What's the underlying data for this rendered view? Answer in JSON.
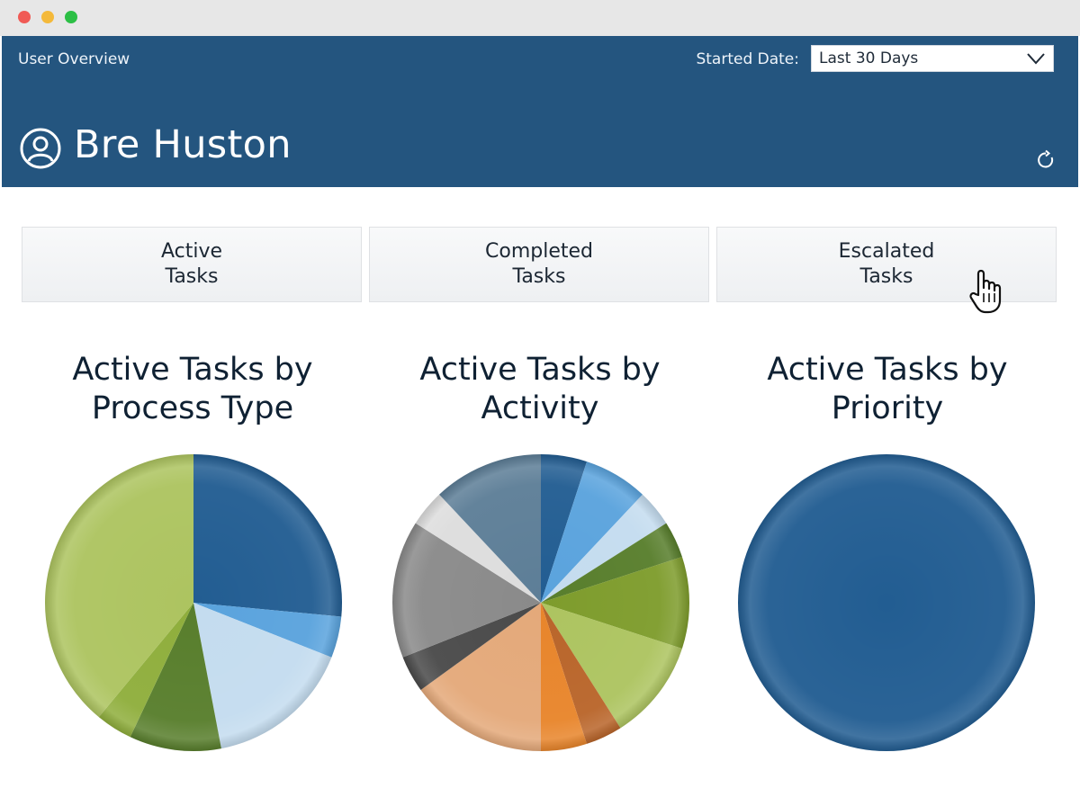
{
  "header": {
    "app_title": "User Overview",
    "date_label": "Started Date:",
    "date_value": "Last 30 Days",
    "user_name": "Bre Huston"
  },
  "tabs": [
    {
      "line1": "Active",
      "line2": "Tasks"
    },
    {
      "line1": "Completed",
      "line2": "Tasks"
    },
    {
      "line1": "Escalated",
      "line2": "Tasks"
    }
  ],
  "colors": {
    "header_bg": "#24557f",
    "brand_blue": "#24557f"
  },
  "icons": [
    "user-icon",
    "refresh-icon",
    "chevron-down-icon",
    "hand-cursor-icon"
  ],
  "chart_data": [
    {
      "type": "pie",
      "title_line1": "Active Tasks by",
      "title_line2": "Process Type",
      "values": [
        26.5,
        4.5,
        16,
        10,
        4,
        39
      ],
      "colors": [
        "#225d92",
        "#5aa3dd",
        "#c4dcef",
        "#587e2c",
        "#8fae3c",
        "#adc460"
      ]
    },
    {
      "type": "pie",
      "title_line1": "Active Tasks by",
      "title_line2": "Activity",
      "values": [
        5,
        7,
        4,
        4,
        10,
        11,
        4,
        5,
        15,
        4,
        15,
        4,
        12
      ],
      "colors": [
        "#225d92",
        "#5aa3dd",
        "#c4dcef",
        "#587e2c",
        "#7e9c2c",
        "#adc460",
        "#b9652a",
        "#e8852b",
        "#e4a97a",
        "#4a4a4a",
        "#8a8a8a",
        "#dddddd",
        "#5d7e97"
      ]
    },
    {
      "type": "pie",
      "title_line1": "Active Tasks by",
      "title_line2": "Priority",
      "values": [
        100
      ],
      "colors": [
        "#225d92"
      ]
    }
  ]
}
